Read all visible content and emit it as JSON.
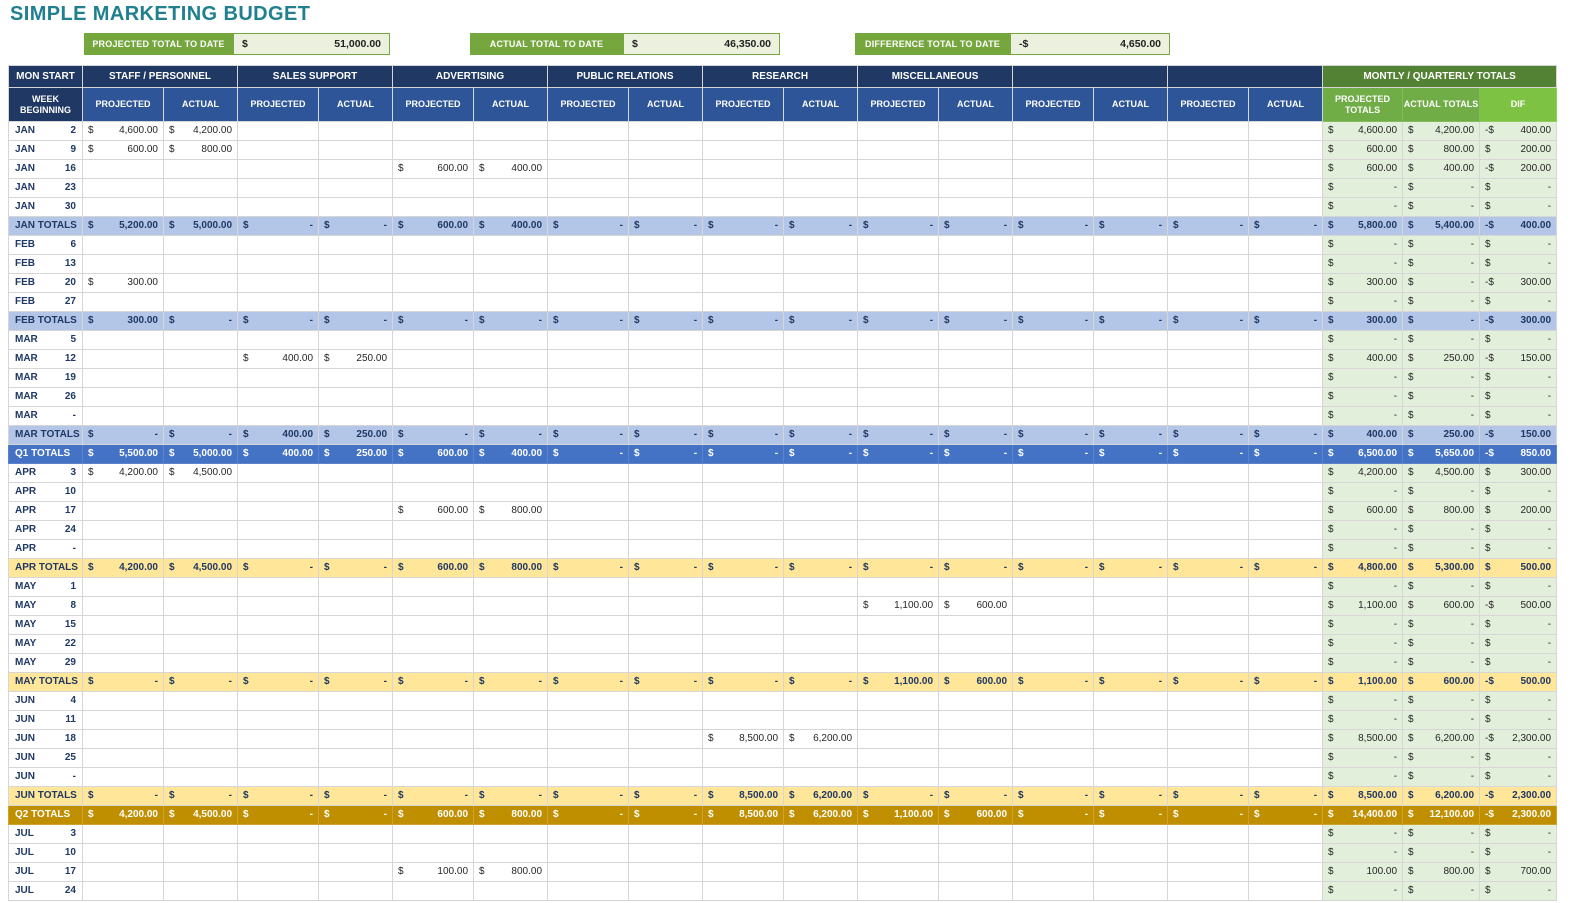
{
  "title": "SIMPLE MARKETING BUDGET",
  "summary": [
    {
      "label": "PROJECTED TOTAL TO DATE",
      "currency": "$",
      "value": "51,000.00"
    },
    {
      "label": "ACTUAL TOTAL TO DATE",
      "currency": "$",
      "value": "46,350.00"
    },
    {
      "label": "DIFFERENCE TOTAL TO DATE",
      "currency": "-$",
      "value": "4,650.00"
    }
  ],
  "colors": {
    "title_teal": "#20808F",
    "header_navy": "#1F3864",
    "subheader_blue": "#2E5597",
    "totals_header_green": "#548235",
    "totals_subheader_green": "#70AD47",
    "dif_header_green": "#7DC242",
    "summary_green": "#76A73F",
    "summary_value_bg": "#EBF1DE",
    "month_total_blue": "#B4C6E7",
    "month_total_yellow": "#FFE699",
    "q1_total_blue": "#4472C4",
    "q2_total_gold": "#BF8F00",
    "totals_cell_green": "#E2EFDA"
  },
  "table": {
    "corner_header": "MON START",
    "week_header": "WEEK BEGINNING",
    "groups": [
      "STAFF / PERSONNEL",
      "SALES SUPPORT",
      "ADVERTISING",
      "PUBLIC RELATIONS",
      "RESEARCH",
      "MISCELLANEOUS",
      "",
      ""
    ],
    "sub_projected": "PROJECTED",
    "sub_actual": "ACTUAL",
    "totals_header": "MONTLY / QUARTERLY TOTALS",
    "totals_sub": [
      "PROJECTED TOTALS",
      "ACTUAL TOTALS",
      "DIF"
    ],
    "rows": [
      {
        "month": "JAN",
        "day": "2",
        "style": "n",
        "cells": [
          "4,600.00",
          "4,200.00",
          "",
          "",
          "",
          "",
          "",
          "",
          "",
          "",
          "",
          "",
          "",
          "",
          "",
          ""
        ],
        "pt": "4,600.00",
        "at": "4,200.00",
        "dc": "-$",
        "dv": "400.00"
      },
      {
        "month": "JAN",
        "day": "9",
        "style": "n",
        "cells": [
          "600.00",
          "800.00",
          "",
          "",
          "",
          "",
          "",
          "",
          "",
          "",
          "",
          "",
          "",
          "",
          "",
          ""
        ],
        "pt": "600.00",
        "at": "800.00",
        "dc": "$",
        "dv": "200.00"
      },
      {
        "month": "JAN",
        "day": "16",
        "style": "n",
        "cells": [
          "",
          "",
          "",
          "",
          "600.00",
          "400.00",
          "",
          "",
          "",
          "",
          "",
          "",
          "",
          "",
          "",
          ""
        ],
        "pt": "600.00",
        "at": "400.00",
        "dc": "-$",
        "dv": "200.00"
      },
      {
        "month": "JAN",
        "day": "23",
        "style": "n",
        "cells": [],
        "pt": "-",
        "at": "-",
        "dc": "$",
        "dv": "-"
      },
      {
        "month": "JAN",
        "day": "30",
        "style": "n",
        "cells": [],
        "pt": "-",
        "at": "-",
        "dc": "$",
        "dv": "-"
      },
      {
        "month": "JAN TOTALS",
        "day": "",
        "style": "mtb",
        "cells": [
          "5,200.00",
          "5,000.00",
          "-",
          "-",
          "600.00",
          "400.00",
          "-",
          "-",
          "-",
          "-",
          "-",
          "-",
          "-",
          "-",
          "-",
          "-"
        ],
        "pt": "5,800.00",
        "at": "5,400.00",
        "dc": "-$",
        "dv": "400.00"
      },
      {
        "month": "FEB",
        "day": "6",
        "style": "n",
        "cells": [],
        "pt": "-",
        "at": "-",
        "dc": "$",
        "dv": "-"
      },
      {
        "month": "FEB",
        "day": "13",
        "style": "n",
        "cells": [],
        "pt": "-",
        "at": "-",
        "dc": "$",
        "dv": "-"
      },
      {
        "month": "FEB",
        "day": "20",
        "style": "n",
        "cells": [
          "300.00",
          "",
          "",
          "",
          "",
          "",
          "",
          "",
          "",
          "",
          "",
          "",
          "",
          "",
          "",
          ""
        ],
        "pt": "300.00",
        "at": "-",
        "dc": "-$",
        "dv": "300.00"
      },
      {
        "month": "FEB",
        "day": "27",
        "style": "n",
        "cells": [],
        "pt": "-",
        "at": "-",
        "dc": "$",
        "dv": "-"
      },
      {
        "month": "FEB TOTALS",
        "day": "",
        "style": "mtb",
        "cells": [
          "300.00",
          "-",
          "-",
          "-",
          "-",
          "-",
          "-",
          "-",
          "-",
          "-",
          "-",
          "-",
          "-",
          "-",
          "-",
          "-"
        ],
        "pt": "300.00",
        "at": "-",
        "dc": "-$",
        "dv": "300.00"
      },
      {
        "month": "MAR",
        "day": "5",
        "style": "n",
        "cells": [],
        "pt": "-",
        "at": "-",
        "dc": "$",
        "dv": "-"
      },
      {
        "month": "MAR",
        "day": "12",
        "style": "n",
        "cells": [
          "",
          "",
          "400.00",
          "250.00",
          "",
          "",
          "",
          "",
          "",
          "",
          "",
          "",
          "",
          "",
          "",
          ""
        ],
        "pt": "400.00",
        "at": "250.00",
        "dc": "-$",
        "dv": "150.00"
      },
      {
        "month": "MAR",
        "day": "19",
        "style": "n",
        "cells": [],
        "pt": "-",
        "at": "-",
        "dc": "$",
        "dv": "-"
      },
      {
        "month": "MAR",
        "day": "26",
        "style": "n",
        "cells": [],
        "pt": "-",
        "at": "-",
        "dc": "$",
        "dv": "-"
      },
      {
        "month": "MAR",
        "day": "-",
        "style": "n",
        "cells": [],
        "pt": "-",
        "at": "-",
        "dc": "$",
        "dv": "-"
      },
      {
        "month": "MAR TOTALS",
        "day": "",
        "style": "mtb",
        "cells": [
          "-",
          "-",
          "400.00",
          "250.00",
          "-",
          "-",
          "-",
          "-",
          "-",
          "-",
          "-",
          "-",
          "-",
          "-",
          "-",
          "-"
        ],
        "pt": "400.00",
        "at": "250.00",
        "dc": "-$",
        "dv": "150.00"
      },
      {
        "month": "Q1 TOTALS",
        "day": "",
        "style": "q1",
        "cells": [
          "5,500.00",
          "5,000.00",
          "400.00",
          "250.00",
          "600.00",
          "400.00",
          "-",
          "-",
          "-",
          "-",
          "-",
          "-",
          "-",
          "-",
          "-",
          "-"
        ],
        "pt": "6,500.00",
        "at": "5,650.00",
        "dc": "-$",
        "dv": "850.00"
      },
      {
        "month": "APR",
        "day": "3",
        "style": "n",
        "cells": [
          "4,200.00",
          "4,500.00",
          "",
          "",
          "",
          "",
          "",
          "",
          "",
          "",
          "",
          "",
          "",
          "",
          "",
          ""
        ],
        "pt": "4,200.00",
        "at": "4,500.00",
        "dc": "$",
        "dv": "300.00"
      },
      {
        "month": "APR",
        "day": "10",
        "style": "n",
        "cells": [],
        "pt": "-",
        "at": "-",
        "dc": "$",
        "dv": "-"
      },
      {
        "month": "APR",
        "day": "17",
        "style": "n",
        "cells": [
          "",
          "",
          "",
          "",
          "600.00",
          "800.00",
          "",
          "",
          "",
          "",
          "",
          "",
          "",
          "",
          "",
          ""
        ],
        "pt": "600.00",
        "at": "800.00",
        "dc": "$",
        "dv": "200.00"
      },
      {
        "month": "APR",
        "day": "24",
        "style": "n",
        "cells": [],
        "pt": "-",
        "at": "-",
        "dc": "$",
        "dv": "-"
      },
      {
        "month": "APR",
        "day": "-",
        "style": "n",
        "cells": [],
        "pt": "-",
        "at": "-",
        "dc": "$",
        "dv": "-"
      },
      {
        "month": "APR TOTALS",
        "day": "",
        "style": "mty",
        "cells": [
          "4,200.00",
          "4,500.00",
          "-",
          "-",
          "600.00",
          "800.00",
          "-",
          "-",
          "-",
          "-",
          "-",
          "-",
          "-",
          "-",
          "-",
          "-"
        ],
        "pt": "4,800.00",
        "at": "5,300.00",
        "dc": "$",
        "dv": "500.00"
      },
      {
        "month": "MAY",
        "day": "1",
        "style": "n",
        "cells": [],
        "pt": "-",
        "at": "-",
        "dc": "$",
        "dv": "-"
      },
      {
        "month": "MAY",
        "day": "8",
        "style": "n",
        "cells": [
          "",
          "",
          "",
          "",
          "",
          "",
          "",
          "",
          "",
          "",
          "1,100.00",
          "600.00",
          "",
          "",
          "",
          ""
        ],
        "pt": "1,100.00",
        "at": "600.00",
        "dc": "-$",
        "dv": "500.00"
      },
      {
        "month": "MAY",
        "day": "15",
        "style": "n",
        "cells": [],
        "pt": "-",
        "at": "-",
        "dc": "$",
        "dv": "-"
      },
      {
        "month": "MAY",
        "day": "22",
        "style": "n",
        "cells": [],
        "pt": "-",
        "at": "-",
        "dc": "$",
        "dv": "-"
      },
      {
        "month": "MAY",
        "day": "29",
        "style": "n",
        "cells": [],
        "pt": "-",
        "at": "-",
        "dc": "$",
        "dv": "-"
      },
      {
        "month": "MAY TOTALS",
        "day": "",
        "style": "mty",
        "cells": [
          "-",
          "-",
          "-",
          "-",
          "-",
          "-",
          "-",
          "-",
          "-",
          "-",
          "1,100.00",
          "600.00",
          "-",
          "-",
          "-",
          "-"
        ],
        "pt": "1,100.00",
        "at": "600.00",
        "dc": "-$",
        "dv": "500.00"
      },
      {
        "month": "JUN",
        "day": "4",
        "style": "n",
        "cells": [],
        "pt": "-",
        "at": "-",
        "dc": "$",
        "dv": "-"
      },
      {
        "month": "JUN",
        "day": "11",
        "style": "n",
        "cells": [],
        "pt": "-",
        "at": "-",
        "dc": "$",
        "dv": "-"
      },
      {
        "month": "JUN",
        "day": "18",
        "style": "n",
        "cells": [
          "",
          "",
          "",
          "",
          "",
          "",
          "",
          "",
          "8,500.00",
          "6,200.00",
          "",
          "",
          "",
          "",
          "",
          ""
        ],
        "pt": "8,500.00",
        "at": "6,200.00",
        "dc": "-$",
        "dv": "2,300.00"
      },
      {
        "month": "JUN",
        "day": "25",
        "style": "n",
        "cells": [],
        "pt": "-",
        "at": "-",
        "dc": "$",
        "dv": "-"
      },
      {
        "month": "JUN",
        "day": "-",
        "style": "n",
        "cells": [],
        "pt": "-",
        "at": "-",
        "dc": "$",
        "dv": "-"
      },
      {
        "month": "JUN TOTALS",
        "day": "",
        "style": "mty",
        "cells": [
          "-",
          "-",
          "-",
          "-",
          "-",
          "-",
          "-",
          "-",
          "8,500.00",
          "6,200.00",
          "-",
          "-",
          "-",
          "-",
          "-",
          "-"
        ],
        "pt": "8,500.00",
        "at": "6,200.00",
        "dc": "-$",
        "dv": "2,300.00"
      },
      {
        "month": "Q2 TOTALS",
        "day": "",
        "style": "q2",
        "cells": [
          "4,200.00",
          "4,500.00",
          "-",
          "-",
          "600.00",
          "800.00",
          "-",
          "-",
          "8,500.00",
          "6,200.00",
          "1,100.00",
          "600.00",
          "-",
          "-",
          "-",
          "-"
        ],
        "pt": "14,400.00",
        "at": "12,100.00",
        "dc": "-$",
        "dv": "2,300.00"
      },
      {
        "month": "JUL",
        "day": "3",
        "style": "n",
        "cells": [],
        "pt": "-",
        "at": "-",
        "dc": "$",
        "dv": "-"
      },
      {
        "month": "JUL",
        "day": "10",
        "style": "n",
        "cells": [],
        "pt": "-",
        "at": "-",
        "dc": "$",
        "dv": "-"
      },
      {
        "month": "JUL",
        "day": "17",
        "style": "n",
        "cells": [
          "",
          "",
          "",
          "",
          "100.00",
          "800.00",
          "",
          "",
          "",
          "",
          "",
          "",
          "",
          "",
          "",
          ""
        ],
        "pt": "100.00",
        "at": "800.00",
        "dc": "$",
        "dv": "700.00"
      },
      {
        "month": "JUL",
        "day": "24",
        "style": "n",
        "cells": [],
        "pt": "-",
        "at": "-",
        "dc": "$",
        "dv": "-"
      }
    ]
  }
}
